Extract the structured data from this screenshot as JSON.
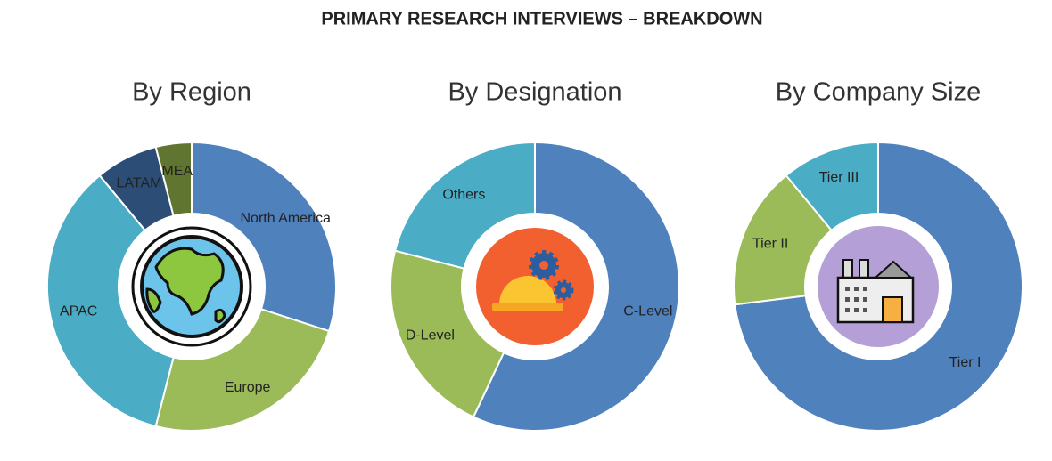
{
  "title": "PRIMARY RESEARCH INTERVIEWS – BREAKDOWN",
  "chart_data": [
    {
      "type": "pie",
      "title": "By Region",
      "categories": [
        "North America",
        "Europe",
        "APAC",
        "LATAM",
        "MEA"
      ],
      "values": [
        30,
        24,
        35,
        7,
        4
      ],
      "colors": [
        "#4f81bd",
        "#9bbb59",
        "#4bacc6",
        "#2c4d75",
        "#5f7530"
      ]
    },
    {
      "type": "pie",
      "title": "By Designation",
      "categories": [
        "C-Level",
        "D-Level",
        "Others"
      ],
      "values": [
        57,
        22,
        21
      ],
      "colors": [
        "#4f81bd",
        "#9bbb59",
        "#4bacc6"
      ]
    },
    {
      "type": "pie",
      "title": "By Company Size",
      "categories": [
        "Tier I",
        "Tier II",
        "Tier III"
      ],
      "values": [
        73,
        16,
        11
      ],
      "colors": [
        "#4f81bd",
        "#9bbb59",
        "#4bacc6"
      ]
    }
  ]
}
